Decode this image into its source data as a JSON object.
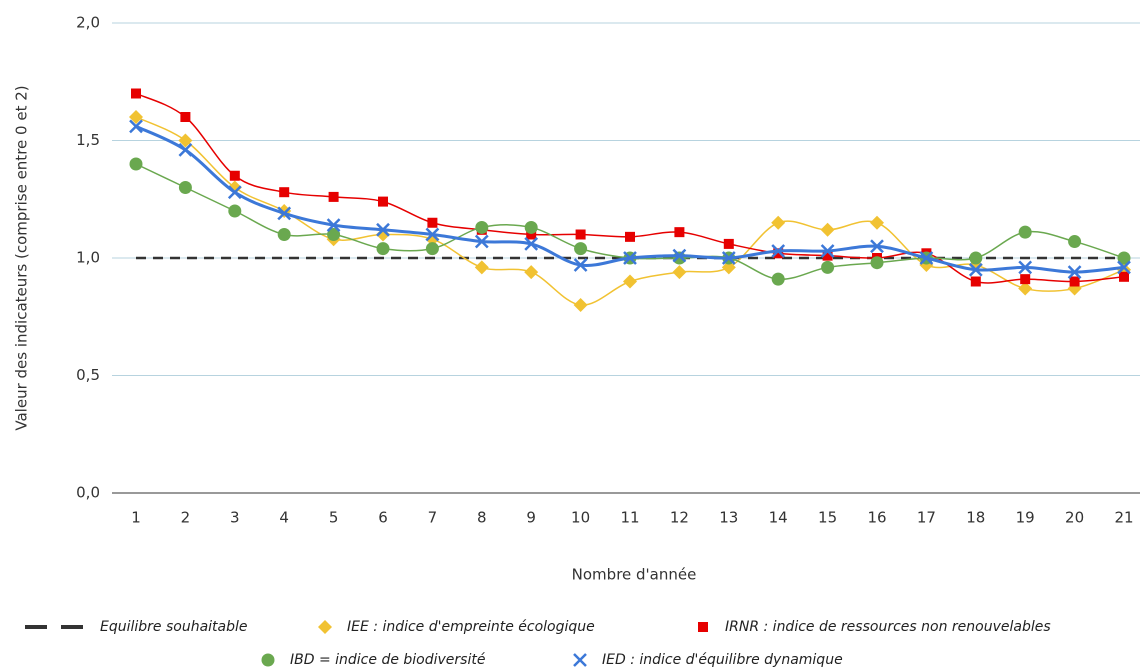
{
  "chart_data": {
    "type": "line",
    "x_label": "Nombre d'année",
    "y_label": "Valeur des indicateurs (comprise entre 0 et 2)",
    "categories": [
      1,
      2,
      3,
      4,
      5,
      6,
      7,
      8,
      9,
      10,
      11,
      12,
      13,
      14,
      15,
      16,
      17,
      18,
      19,
      20,
      21
    ],
    "ylim": [
      0,
      2
    ],
    "yticks": [
      {
        "value": 0,
        "label": "0,0"
      },
      {
        "value": 0.5,
        "label": "0,5"
      },
      {
        "value": 1,
        "label": "1,0"
      },
      {
        "value": 1.5,
        "label": "1,5"
      },
      {
        "value": 2,
        "label": "2,0"
      }
    ],
    "grid": true,
    "legend": "bottom",
    "series": [
      {
        "name": "Equilibre souhaitable",
        "color": "#333333",
        "marker": "dash",
        "values": [
          1,
          1,
          1,
          1,
          1,
          1,
          1,
          1,
          1,
          1,
          1,
          1,
          1,
          1,
          1,
          1,
          1,
          1,
          1,
          1,
          1
        ]
      },
      {
        "name": "IEE : indice d'empreinte écologique",
        "color": "#f1c232",
        "marker": "diamond",
        "values": [
          1.6,
          1.5,
          1.3,
          1.2,
          1.08,
          1.1,
          1.08,
          0.96,
          0.94,
          0.8,
          0.9,
          0.94,
          0.96,
          1.15,
          1.12,
          1.15,
          0.97,
          0.97,
          0.87,
          0.87,
          0.95
        ]
      },
      {
        "name": "IRNR : indice de ressources non renouvelables",
        "color": "#e60000",
        "marker": "square",
        "values": [
          1.7,
          1.6,
          1.35,
          1.28,
          1.26,
          1.24,
          1.15,
          1.12,
          1.1,
          1.1,
          1.09,
          1.11,
          1.06,
          1.02,
          1.01,
          1.0,
          1.02,
          0.9,
          0.91,
          0.9,
          0.92
        ]
      },
      {
        "name": "IBD = indice de biodiversité",
        "color": "#6aa84f",
        "marker": "circle",
        "values": [
          1.4,
          1.3,
          1.2,
          1.1,
          1.1,
          1.04,
          1.04,
          1.13,
          1.13,
          1.04,
          1.0,
          1.0,
          1.0,
          0.91,
          0.96,
          0.98,
          1.0,
          1.0,
          1.11,
          1.07,
          1.0
        ]
      },
      {
        "name": "IED : indice d'équilibre dynamique",
        "color": "#3c78d8",
        "marker": "x",
        "values": [
          1.56,
          1.46,
          1.28,
          1.19,
          1.14,
          1.12,
          1.1,
          1.07,
          1.06,
          0.97,
          1.0,
          1.01,
          1.0,
          1.03,
          1.03,
          1.05,
          1.0,
          0.95,
          0.96,
          0.94,
          0.96
        ]
      }
    ]
  }
}
